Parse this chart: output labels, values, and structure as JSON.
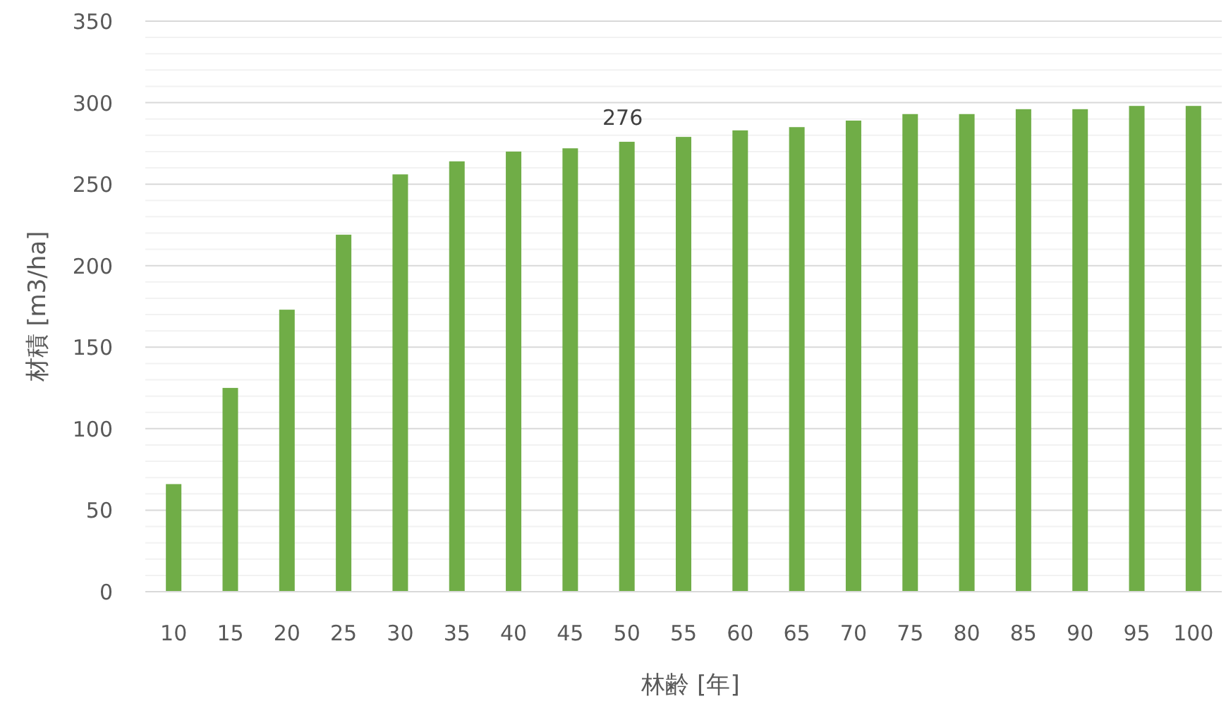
{
  "chart_data": {
    "type": "bar",
    "xlabel": "林齢 [年]",
    "ylabel": "材積 [m3/ha]",
    "categories": [
      "10",
      "15",
      "20",
      "25",
      "30",
      "35",
      "40",
      "45",
      "50",
      "55",
      "60",
      "65",
      "70",
      "75",
      "80",
      "85",
      "90",
      "95",
      "100"
    ],
    "values": [
      66,
      125,
      173,
      219,
      256,
      264,
      270,
      272,
      276,
      279,
      283,
      285,
      289,
      293,
      293,
      296,
      296,
      298,
      298
    ],
    "value_labels": [
      null,
      null,
      null,
      null,
      null,
      null,
      null,
      null,
      "276",
      null,
      null,
      null,
      null,
      null,
      null,
      null,
      null,
      null,
      null
    ],
    "color": "#70ad47",
    "ylim": [
      0,
      350
    ],
    "yticks": [
      0,
      {
        "value": 10,
        "label": null
      },
      {
        "value": 20,
        "label": null
      },
      {
        "value": 30,
        "label": null
      },
      {
        "value": 40,
        "label": null
      },
      50,
      {
        "value": 60,
        "label": null
      },
      {
        "value": 70,
        "label": null
      },
      {
        "value": 80,
        "label": null
      },
      {
        "value": 90,
        "label": null
      },
      100,
      {
        "value": 110,
        "label": null
      },
      {
        "value": 120,
        "label": null
      },
      {
        "value": 130,
        "label": null
      },
      {
        "value": 140,
        "label": null
      },
      150,
      {
        "value": 160,
        "label": null
      },
      {
        "value": 170,
        "label": null
      },
      {
        "value": 180,
        "label": null
      },
      {
        "value": 190,
        "label": null
      },
      200,
      {
        "value": 210,
        "label": null
      },
      {
        "value": 220,
        "label": null
      },
      {
        "value": 230,
        "label": null
      },
      {
        "value": 240,
        "label": null
      },
      250,
      {
        "value": 260,
        "label": null
      },
      {
        "value": 270,
        "label": null
      },
      {
        "value": 280,
        "label": null
      },
      {
        "value": 290,
        "label": null
      },
      300,
      {
        "value": 310,
        "label": null
      },
      {
        "value": 320,
        "label": null
      },
      {
        "value": 330,
        "label": null
      },
      {
        "value": 340,
        "label": null
      },
      350
    ],
    "grid": "y"
  }
}
